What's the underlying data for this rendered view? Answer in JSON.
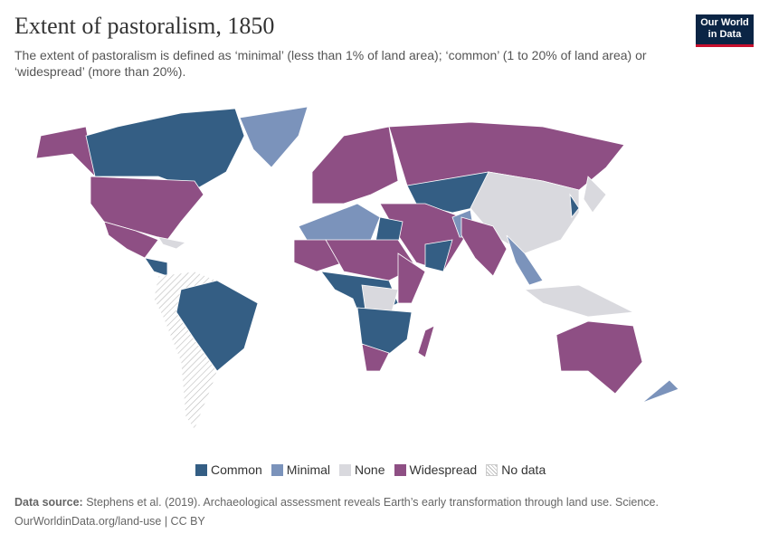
{
  "header": {
    "title": "Extent of pastoralism, 1850",
    "subtitle": "The extent of pastoralism is defined as ‘minimal’ (less than 1% of land area); ‘common’ (1 to 20% of land area) or ‘widespread’ (more than 20%).",
    "logo": [
      "Our World",
      "in Data"
    ]
  },
  "legend": {
    "items": [
      {
        "label": "Common",
        "color": "#345e84"
      },
      {
        "label": "Minimal",
        "color": "#7b93bb"
      },
      {
        "label": "None",
        "color": "#d9d9de"
      },
      {
        "label": "Widespread",
        "color": "#8e4f84"
      },
      {
        "label": "No data"
      }
    ]
  },
  "footer": {
    "source_label": "Data source:",
    "source_text": "Stephens et al. (2019). Archaeological assessment reveals Earth’s early transformation through land use. Science.",
    "url_line": "OurWorldinData.org/land-use | CC BY"
  }
}
